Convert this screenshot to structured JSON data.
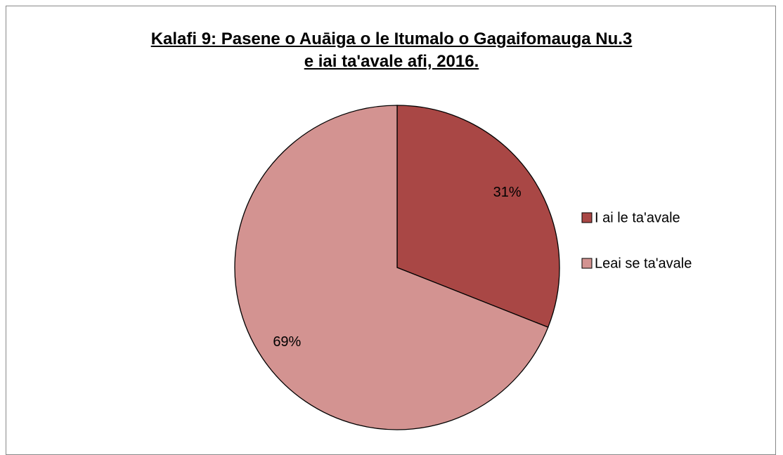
{
  "chart_data": {
    "type": "pie",
    "title": "Kalafi 9: Pasene o Auāiga o le Itumalo o Gagaifomauga Nu.3 e iai ta'avale afi, 2016.",
    "categories": [
      "I ai le ta'avale",
      "Leai se ta'avale"
    ],
    "values": [
      31,
      69
    ],
    "value_labels": [
      "31%",
      "69%"
    ],
    "colors": [
      "#a94745",
      "#d39391"
    ],
    "legend": "right"
  }
}
